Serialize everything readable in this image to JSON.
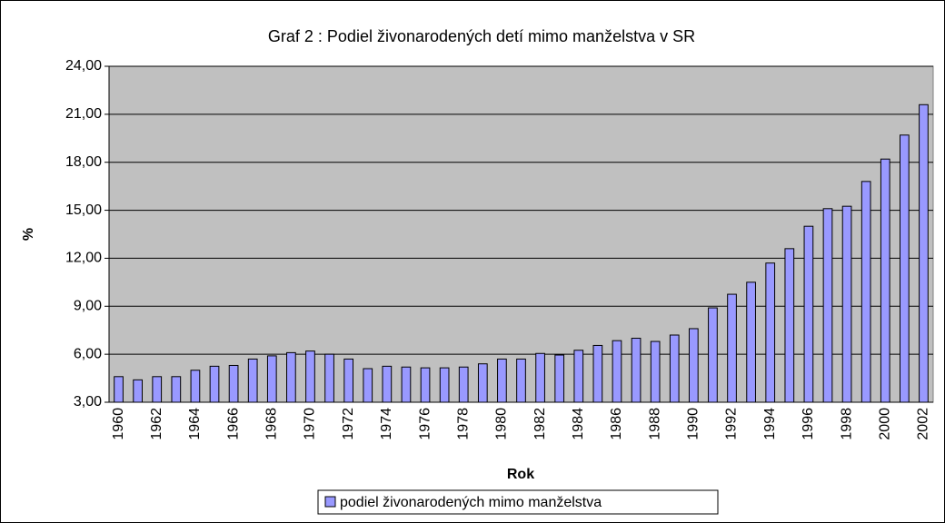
{
  "chart_data": {
    "type": "bar",
    "title": "Graf 2 : Podiel živonarodených detí mimo manželstva v SR",
    "xlabel": "Rok",
    "ylabel": "%",
    "categories": [
      "1960",
      null,
      "1962",
      null,
      "1964",
      null,
      "1966",
      null,
      "1968",
      null,
      "1970",
      null,
      "1972",
      null,
      "1974",
      null,
      "1976",
      null,
      "1978",
      null,
      "1980",
      null,
      "1982",
      null,
      "1984",
      null,
      "1986",
      null,
      "1988",
      null,
      "1990",
      null,
      "1992",
      null,
      "1994",
      null,
      "1996",
      null,
      "1998",
      null,
      "2000",
      null,
      "2002"
    ],
    "series": [
      {
        "name": "podiel živonarodených mimo manželstva",
        "color": "#9999ff",
        "values": [
          4.6,
          4.4,
          4.6,
          4.6,
          5.0,
          5.25,
          5.3,
          5.7,
          5.9,
          6.1,
          6.2,
          6.0,
          5.7,
          5.1,
          5.25,
          5.2,
          5.15,
          5.15,
          5.2,
          5.4,
          5.7,
          5.7,
          6.05,
          5.95,
          6.25,
          6.55,
          6.85,
          7.0,
          6.8,
          7.2,
          7.6,
          8.9,
          9.75,
          10.5,
          11.7,
          12.6,
          14.0,
          15.1,
          15.25,
          16.8,
          18.2,
          19.7,
          21.6
        ]
      }
    ],
    "ylim": [
      3,
      24
    ],
    "yticks": [
      {
        "value": 3,
        "label": "3,00"
      },
      {
        "value": 6,
        "label": "6,00"
      },
      {
        "value": 9,
        "label": "9,00"
      },
      {
        "value": 12,
        "label": "12,00"
      },
      {
        "value": 15,
        "label": "15,00"
      },
      {
        "value": 18,
        "label": "18,00"
      },
      {
        "value": 21,
        "label": "21,00"
      },
      {
        "value": 24,
        "label": "24,00"
      }
    ],
    "grid": true,
    "legend": "bottom"
  }
}
